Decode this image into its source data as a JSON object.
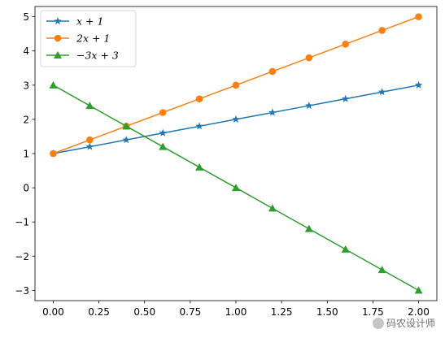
{
  "chart_data": {
    "type": "line",
    "x": [
      0.0,
      0.2,
      0.4,
      0.6,
      0.8,
      1.0,
      1.2,
      1.4,
      1.6,
      1.8,
      2.0
    ],
    "series": [
      {
        "name": "x + 1",
        "color": "#1f77b4",
        "marker": "star",
        "values": [
          1.0,
          1.2,
          1.4,
          1.6,
          1.8,
          2.0,
          2.2,
          2.4,
          2.6,
          2.8,
          3.0
        ]
      },
      {
        "name": "2x + 1",
        "color": "#ff7f0e",
        "marker": "circle",
        "values": [
          1.0,
          1.4,
          1.8,
          2.2,
          2.6,
          3.0,
          3.4,
          3.8,
          4.2,
          4.6,
          5.0
        ]
      },
      {
        "name": "−3x + 3",
        "color": "#2ca02c",
        "marker": "triangle",
        "values": [
          3.0,
          2.4,
          1.8,
          1.2,
          0.6,
          0.0,
          -0.6,
          -1.2,
          -1.8,
          -2.4,
          -3.0
        ]
      }
    ],
    "xlim": [
      -0.1,
      2.1
    ],
    "ylim": [
      -3.3,
      5.3
    ],
    "xticks": [
      0.0,
      0.25,
      0.5,
      0.75,
      1.0,
      1.25,
      1.5,
      1.75,
      2.0
    ],
    "xtick_labels": [
      "0.00",
      "0.25",
      "0.50",
      "0.75",
      "1.00",
      "1.25",
      "1.50",
      "1.75",
      "2.00"
    ],
    "yticks": [
      -3,
      -2,
      -1,
      0,
      1,
      2,
      3,
      4,
      5
    ],
    "ytick_labels": [
      "−3",
      "−2",
      "−1",
      "0",
      "1",
      "2",
      "3",
      "4",
      "5"
    ],
    "legend_position": "upper-left",
    "grid": false,
    "title": "",
    "xlabel": "",
    "ylabel": ""
  },
  "watermark": {
    "text": "码农设计师"
  }
}
